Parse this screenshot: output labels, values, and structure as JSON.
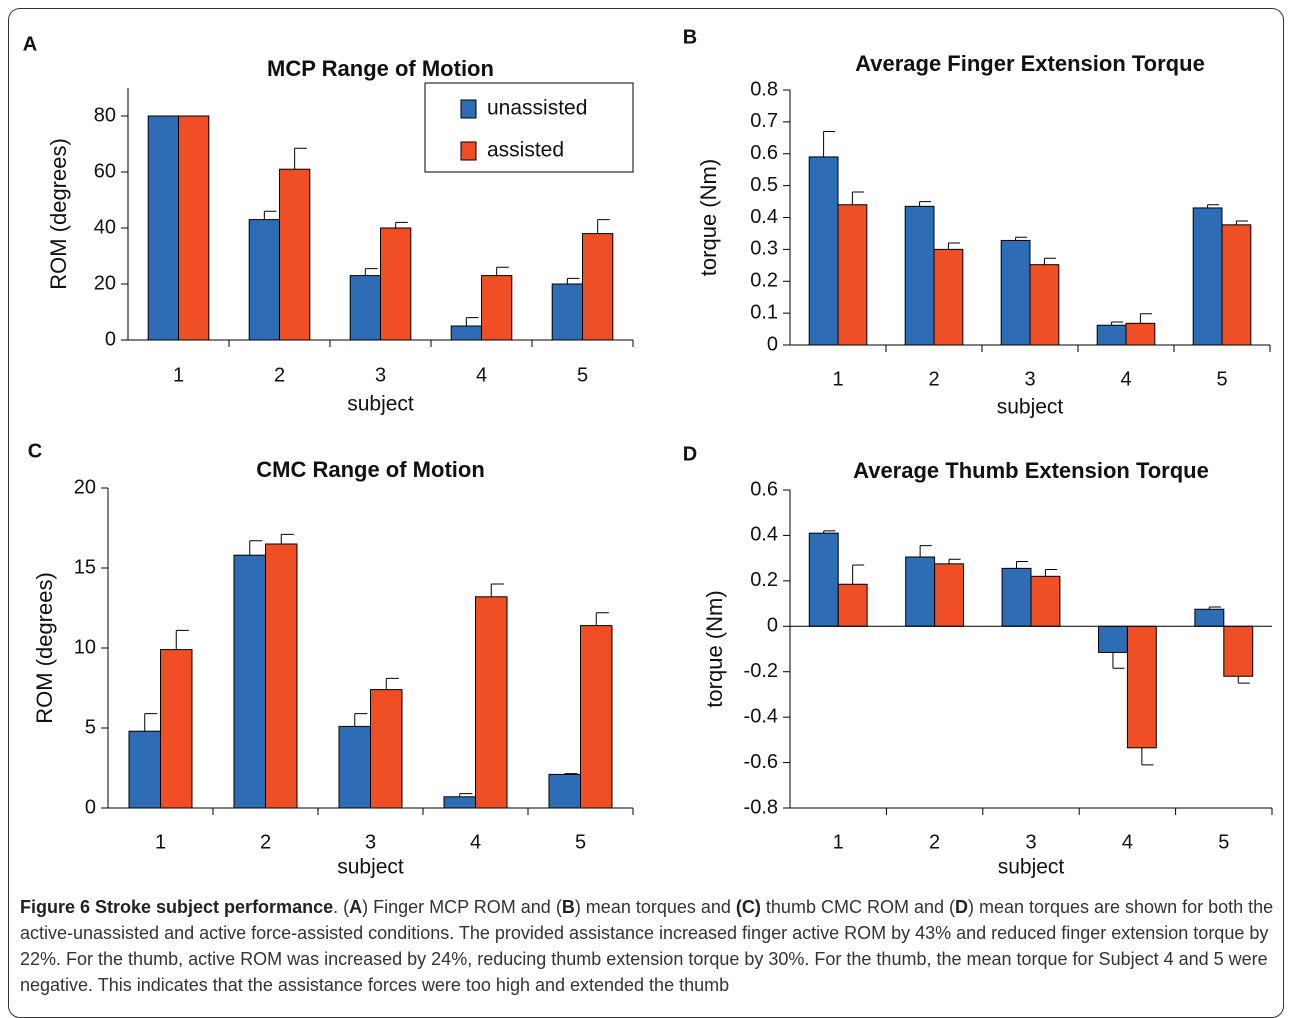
{
  "chart_data": [
    {
      "type": "bar",
      "panel_label": "A",
      "title": "MCP  Range of Motion",
      "xlabel": "subject",
      "ylabel": "ROM (degrees)",
      "categories": [
        "1",
        "2",
        "3",
        "4",
        "5"
      ],
      "series": [
        {
          "name": "unassisted",
          "color": "#2e6db5",
          "values": [
            80,
            43,
            23,
            5,
            20
          ],
          "errors": [
            0,
            3,
            2.5,
            3,
            2
          ]
        },
        {
          "name": "assisted",
          "color": "#f04e24",
          "values": [
            80,
            61,
            40,
            23,
            38
          ],
          "errors": [
            0,
            7.5,
            2,
            3,
            5
          ]
        }
      ],
      "ylim": [
        0,
        90
      ],
      "yticks": [
        0,
        20,
        40,
        60,
        80
      ],
      "legend": "upper right"
    },
    {
      "type": "bar",
      "panel_label": "B",
      "title": "Average Finger Extension Torque",
      "xlabel": "subject",
      "ylabel": "torque (Nm)",
      "categories": [
        "1",
        "2",
        "3",
        "4",
        "5"
      ],
      "series": [
        {
          "name": "unassisted",
          "color": "#2e6db5",
          "values": [
            0.59,
            0.435,
            0.328,
            0.062,
            0.43
          ],
          "errors": [
            0.08,
            0.015,
            0.01,
            0.01,
            0.01
          ]
        },
        {
          "name": "assisted",
          "color": "#f04e24",
          "values": [
            0.44,
            0.3,
            0.252,
            0.068,
            0.377
          ],
          "errors": [
            0.04,
            0.02,
            0.02,
            0.03,
            0.012
          ]
        }
      ],
      "ylim": [
        0,
        0.8
      ],
      "yticks": [
        0,
        0.1,
        0.2,
        0.3,
        0.4,
        0.5,
        0.6,
        0.7,
        0.8
      ]
    },
    {
      "type": "bar",
      "panel_label": "C",
      "title": "CMC  Range of Motion",
      "xlabel": "subject",
      "ylabel": "ROM (degrees)",
      "categories": [
        "1",
        "2",
        "3",
        "4",
        "5"
      ],
      "series": [
        {
          "name": "unassisted",
          "color": "#2e6db5",
          "values": [
            4.8,
            15.8,
            5.1,
            0.7,
            2.1
          ],
          "errors": [
            1.1,
            0.9,
            0.8,
            0.2,
            0.05
          ]
        },
        {
          "name": "assisted",
          "color": "#f04e24",
          "values": [
            9.9,
            16.5,
            7.4,
            13.2,
            11.4
          ],
          "errors": [
            1.2,
            0.6,
            0.7,
            0.8,
            0.8
          ]
        }
      ],
      "ylim": [
        0,
        20
      ],
      "yticks": [
        0,
        5,
        10,
        15,
        20
      ]
    },
    {
      "type": "bar",
      "panel_label": "D",
      "title": "Average Thumb Extension Torque",
      "xlabel": "subject",
      "ylabel": "torque (Nm)",
      "categories": [
        "1",
        "2",
        "3",
        "4",
        "5"
      ],
      "series": [
        {
          "name": "unassisted",
          "color": "#2e6db5",
          "values": [
            0.41,
            0.305,
            0.255,
            -0.115,
            0.075
          ],
          "errors": [
            0.01,
            0.05,
            0.03,
            0.07,
            0.01
          ]
        },
        {
          "name": "assisted",
          "color": "#f04e24",
          "values": [
            0.185,
            0.275,
            0.22,
            -0.535,
            -0.22
          ],
          "errors": [
            0.085,
            0.02,
            0.03,
            0.075,
            0.03
          ]
        }
      ],
      "ylim": [
        -0.8,
        0.6
      ],
      "yticks": [
        -0.8,
        -0.6,
        -0.4,
        -0.2,
        0,
        0.2,
        0.4,
        0.6
      ]
    }
  ],
  "caption": [
    {
      "text": "Figure 6 Stroke subject performance",
      "bold": true
    },
    {
      "text": ". (",
      "bold": false
    },
    {
      "text": "A",
      "bold": true
    },
    {
      "text": ") Finger MCP ROM and (",
      "bold": false
    },
    {
      "text": "B",
      "bold": true
    },
    {
      "text": ") mean torques and ",
      "bold": false
    },
    {
      "text": "(C)",
      "bold": true
    },
    {
      "text": " thumb CMC ROM and (",
      "bold": false
    },
    {
      "text": "D",
      "bold": true
    },
    {
      "text": ") mean torques are shown for both the active-unassisted and active force-assisted conditions. The provided assistance increased finger active ROM by 43% and reduced finger extension torque by 22%. For the thumb, active ROM was increased by 24%, reducing thumb extension torque by 30%. For the thumb, the mean torque for Subject 4 and 5 were negative. This indicates that the assistance forces were too high and extended the thumb",
      "bold": false
    }
  ]
}
